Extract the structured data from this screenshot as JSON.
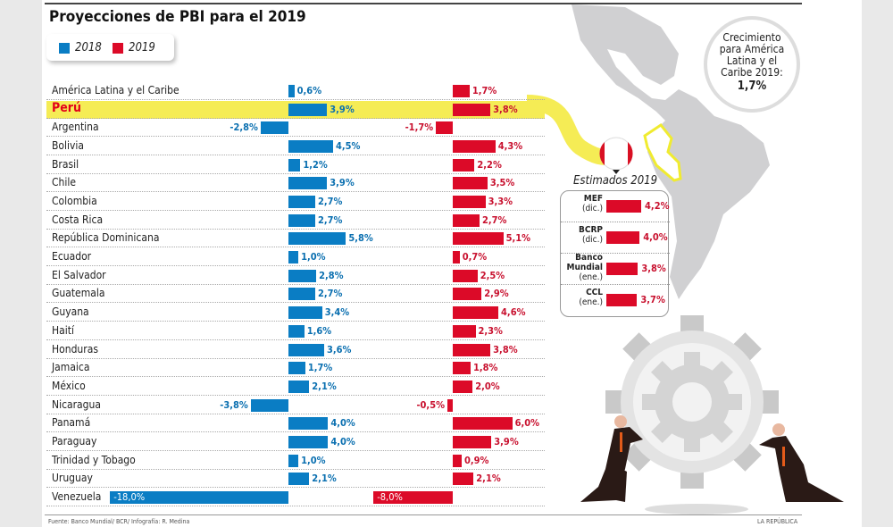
{
  "title": "Proyecciones de PBI para el 2019",
  "legend": [
    "2018",
    "2019"
  ],
  "colors": {
    "2018": "#0a7dc4",
    "2019": "#dc0a28",
    "highlight": "#f5ec55"
  },
  "chart_data": {
    "type": "bar",
    "title": "Proyecciones de PBI para el 2019",
    "categories": [
      "América Latina y el Caribe",
      "Perú",
      "Argentina",
      "Bolivia",
      "Brasil",
      "Chile",
      "Colombia",
      "Costa Rica",
      "República Dominicana",
      "Ecuador",
      "El Salvador",
      "Guatemala",
      "Guyana",
      "Haití",
      "Honduras",
      "Jamaica",
      "México",
      "Nicaragua",
      "Panamá",
      "Paraguay",
      "Trinidad y Tobago",
      "Uruguay",
      "Venezuela"
    ],
    "highlight": "Perú",
    "series": [
      {
        "name": "2018",
        "values": [
          0.6,
          3.9,
          -2.8,
          4.5,
          1.2,
          3.9,
          2.7,
          2.7,
          5.8,
          1.0,
          2.8,
          2.7,
          3.4,
          1.6,
          3.6,
          1.7,
          2.1,
          -3.8,
          4.0,
          4.0,
          1.0,
          2.1,
          -18.0
        ],
        "labels": [
          "0,6%",
          "3,9%",
          "-2,8%",
          "4,5%",
          "1,2%",
          "3,9%",
          "2,7%",
          "2,7%",
          "5,8%",
          "1,0%",
          "2,8%",
          "2,7%",
          "3,4%",
          "1,6%",
          "3,6%",
          "1,7%",
          "2,1%",
          "-3,8%",
          "4,0%",
          "4,0%",
          "1,0%",
          "2,1%",
          "-18,0%"
        ]
      },
      {
        "name": "2019",
        "values": [
          1.7,
          3.8,
          -1.7,
          4.3,
          2.2,
          3.5,
          3.3,
          2.7,
          5.1,
          0.7,
          2.5,
          2.9,
          4.6,
          2.3,
          3.8,
          1.8,
          2.0,
          -0.5,
          6.0,
          3.9,
          0.9,
          2.1,
          -8.0
        ],
        "labels": [
          "1,7%",
          "3,8%",
          "-1,7%",
          "4,3%",
          "2,2%",
          "3,5%",
          "3,3%",
          "2,7%",
          "5,1%",
          "0,7%",
          "2,5%",
          "2,9%",
          "4,6%",
          "2,3%",
          "3,8%",
          "1,8%",
          "2,0%",
          "-0,5%",
          "6,0%",
          "3,9%",
          "0,9%",
          "2,1%",
          "-8,0%"
        ]
      }
    ]
  },
  "callout": {
    "lines": [
      "Crecimiento",
      "para América",
      "Latina y el",
      "Caribe 2019:"
    ],
    "value": "1,7%"
  },
  "estimates": {
    "title": "Estimados 2019",
    "items": [
      {
        "name": "MEF",
        "period": "(dic.)",
        "value": 4.2,
        "label": "4,2%"
      },
      {
        "name": "BCRP",
        "period": "(dic.)",
        "value": 4.0,
        "label": "4,0%"
      },
      {
        "name": "Banco Mundial",
        "period": "(ene.)",
        "value": 3.8,
        "label": "3,8%"
      },
      {
        "name": "CCL",
        "period": "(ene.)",
        "value": 3.7,
        "label": "3,7%"
      }
    ]
  },
  "source": "Fuente: Banco Mundial/ BCR/ Infografía: R. Medina",
  "brand": "LA REPÚBLICA"
}
